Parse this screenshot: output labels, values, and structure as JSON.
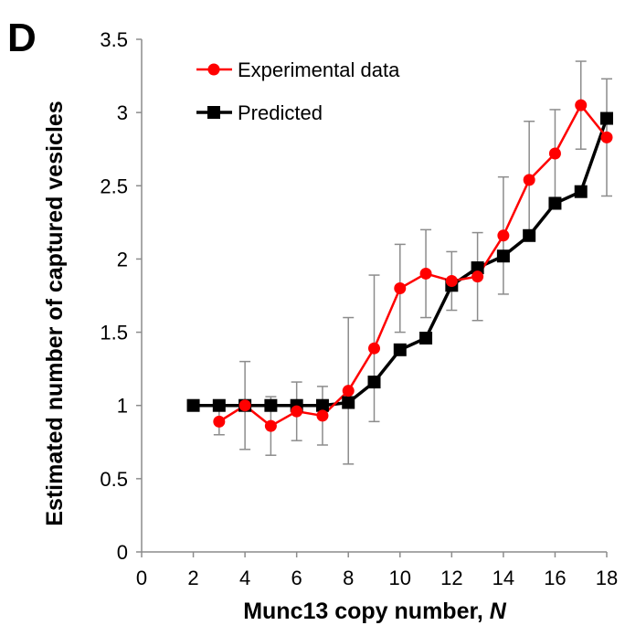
{
  "panel_label": "D",
  "chart_data": {
    "type": "line",
    "xlabel": "Munc13 copy number, ",
    "xlabel_italic": "N",
    "ylabel": "Estimated number of captured vesicles",
    "xlim": [
      0,
      18
    ],
    "ylim": [
      0,
      3.5
    ],
    "x_ticks": [
      0,
      2,
      4,
      6,
      8,
      10,
      12,
      14,
      16,
      18
    ],
    "y_ticks": [
      0,
      0.5,
      1,
      1.5,
      2,
      2.5,
      3,
      3.5
    ],
    "y_tick_labels": [
      "0",
      "0.5",
      "1",
      "1.5",
      "2",
      "2.5",
      "3",
      "3.5"
    ],
    "grid": false,
    "legend_position": "top-left",
    "series": [
      {
        "name": "Experimental data",
        "color": "#ff0000",
        "marker": "circle",
        "x": [
          3,
          4,
          5,
          6,
          7,
          8,
          9,
          10,
          11,
          12,
          13,
          14,
          15,
          16,
          17,
          18
        ],
        "values": [
          0.89,
          1.0,
          0.86,
          0.96,
          0.93,
          1.1,
          1.39,
          1.8,
          1.9,
          1.85,
          1.88,
          2.16,
          2.54,
          2.72,
          3.05,
          2.83
        ],
        "error": [
          0.09,
          0.3,
          0.2,
          0.2,
          0.2,
          0.5,
          0.5,
          0.3,
          0.3,
          0.2,
          0.3,
          0.4,
          0.4,
          0.3,
          0.3,
          0.4
        ]
      },
      {
        "name": "Predicted",
        "color": "#000000",
        "marker": "square",
        "x": [
          2,
          3,
          4,
          5,
          6,
          7,
          8,
          9,
          10,
          11,
          12,
          13,
          14,
          15,
          16,
          17,
          18
        ],
        "values": [
          1.0,
          1.0,
          1.0,
          1.0,
          1.0,
          1.0,
          1.02,
          1.16,
          1.38,
          1.46,
          1.82,
          1.94,
          2.02,
          2.16,
          2.38,
          2.46,
          2.96
        ]
      }
    ]
  }
}
